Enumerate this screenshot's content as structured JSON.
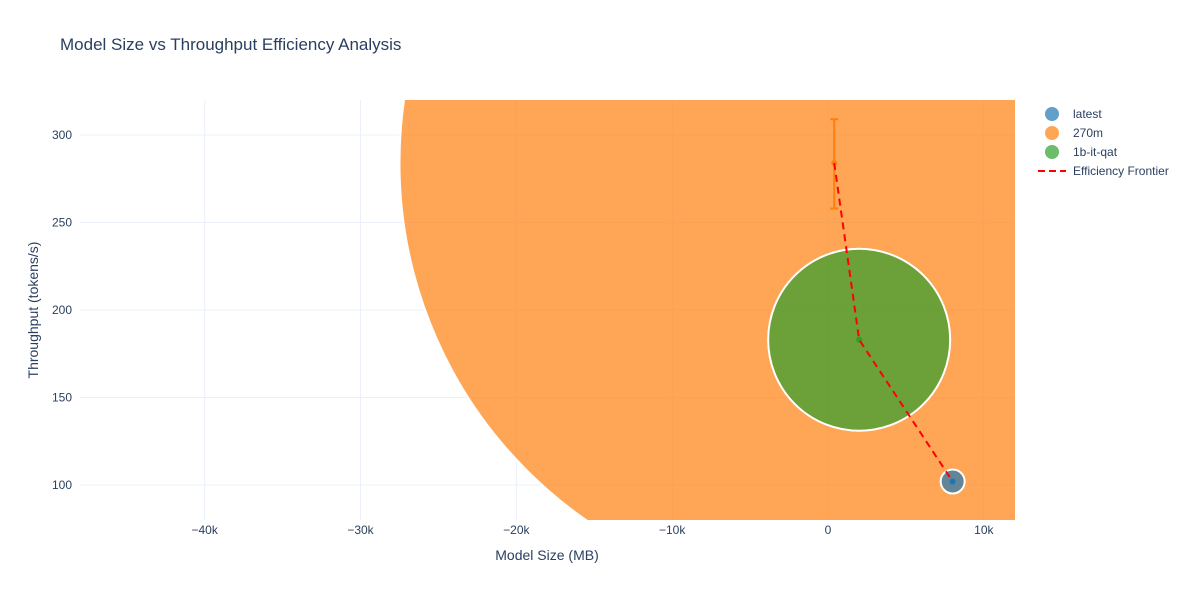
{
  "chart_data": {
    "type": "scatter",
    "title": "Model Size vs Throughput Efficiency Analysis",
    "xlabel": "Model Size (MB)",
    "ylabel": "Throughput (tokens/s)",
    "xlim": [
      -48000,
      12000
    ],
    "ylim": [
      80,
      320
    ],
    "x_ticks": [
      -40000,
      -30000,
      -20000,
      -10000,
      0,
      10000
    ],
    "x_tick_labels": [
      "−40k",
      "−30k",
      "−20k",
      "−10k",
      "0",
      "10k"
    ],
    "y_ticks": [
      100,
      150,
      200,
      250,
      300
    ],
    "y_tick_labels": [
      "100",
      "150",
      "200",
      "250",
      "300"
    ],
    "grid": true,
    "legend_position": "top-right",
    "colors": {
      "latest": "#1f77b4",
      "270m": "#ff7f0e",
      "1b-it-qat": "#2ca02c",
      "frontier": "#ff0000"
    },
    "series": [
      {
        "name": "latest",
        "points": [
          {
            "x": 8000,
            "y": 102,
            "size_mb": 8000
          }
        ]
      },
      {
        "name": "270m",
        "points": [
          {
            "x": 400,
            "y": 284,
            "size_mb": 400,
            "error_low": 258,
            "error_high": 309
          }
        ]
      },
      {
        "name": "1b-it-qat",
        "points": [
          {
            "x": 2000,
            "y": 183,
            "size_mb": 2000
          }
        ]
      }
    ],
    "frontier": {
      "name": "Efficiency Frontier",
      "x": [
        400,
        2000,
        8000
      ],
      "y": [
        284,
        183,
        102
      ]
    }
  },
  "legend": {
    "items": [
      {
        "label": "latest",
        "color": "#1f77b4",
        "kind": "marker"
      },
      {
        "label": "270m",
        "color": "#ff7f0e",
        "kind": "marker"
      },
      {
        "label": "1b-it-qat",
        "color": "#2ca02c",
        "kind": "marker"
      },
      {
        "label": "Efficiency Frontier",
        "color": "#ff0000",
        "kind": "dash"
      }
    ]
  }
}
